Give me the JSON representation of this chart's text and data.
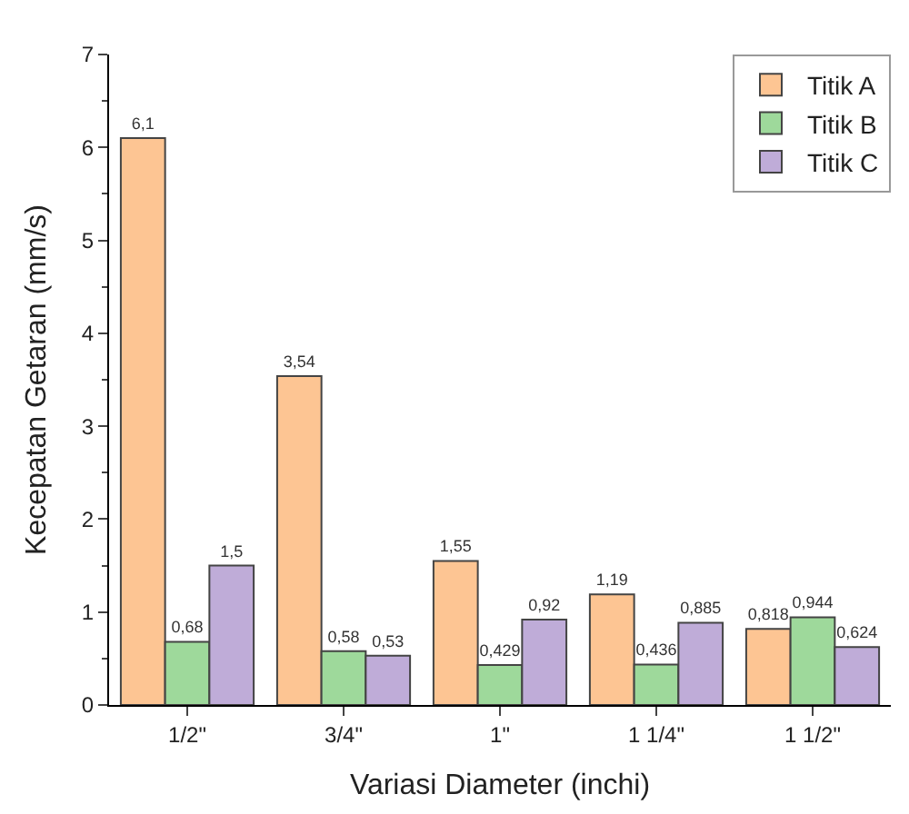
{
  "chart_data": {
    "type": "bar",
    "xlabel": "Variasi Diameter (inchi)",
    "ylabel": "Kecepatan Getaran (mm/s)",
    "categories": [
      "1/2\"",
      "3/4\"",
      "1\"",
      "1 1/4\"",
      "1 1/2\""
    ],
    "series": [
      {
        "name": "Titik A",
        "color": "#fdc593",
        "values": [
          6.1,
          3.54,
          1.55,
          1.19,
          0.818
        ],
        "value_labels": [
          "6,1",
          "3,54",
          "1,55",
          "1,19",
          "0,818"
        ]
      },
      {
        "name": "Titik B",
        "color": "#9ed99b",
        "values": [
          0.68,
          0.58,
          0.429,
          0.436,
          0.944
        ],
        "value_labels": [
          "0,68",
          "0,58",
          "0,429",
          "0,436",
          "0,944"
        ]
      },
      {
        "name": "Titik C",
        "color": "#bfacd8",
        "values": [
          1.5,
          0.53,
          0.92,
          0.885,
          0.624
        ],
        "value_labels": [
          "1,5",
          "0,53",
          "0,92",
          "0,885",
          "0,624"
        ]
      }
    ],
    "ylim": [
      0,
      7
    ],
    "yticks": [
      0,
      1,
      2,
      3,
      4,
      5,
      6,
      7
    ],
    "legend": "top right"
  }
}
